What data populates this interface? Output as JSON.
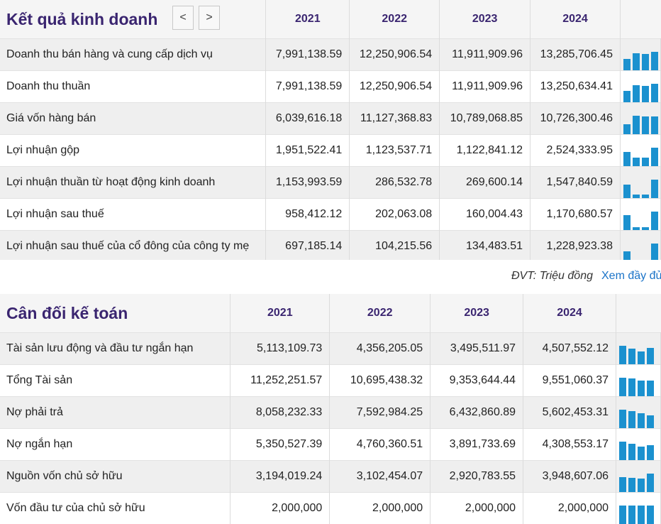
{
  "income": {
    "title": "Kết quả kinh doanh",
    "prev_label": "<",
    "next_label": ">",
    "years": [
      "2021",
      "2022",
      "2023",
      "2024"
    ],
    "rows": [
      {
        "label": "Doanh thu bán hàng và cung cấp dịch vụ",
        "values": [
          "7,991,138.59",
          "12,250,906.54",
          "11,911,909.96",
          "13,285,706.45"
        ],
        "spark": [
          7991138.59,
          12250906.54,
          11911909.96,
          13285706.45
        ]
      },
      {
        "label": "Doanh thu thuần",
        "values": [
          "7,991,138.59",
          "12,250,906.54",
          "11,911,909.96",
          "13,250,634.41"
        ],
        "spark": [
          7991138.59,
          12250906.54,
          11911909.96,
          13250634.41
        ]
      },
      {
        "label": "Giá vốn hàng bán",
        "values": [
          "6,039,616.18",
          "11,127,368.83",
          "10,789,068.85",
          "10,726,300.46"
        ],
        "spark": [
          6039616.18,
          11127368.83,
          10789068.85,
          10726300.46
        ]
      },
      {
        "label": "Lợi nhuận gộp",
        "values": [
          "1,951,522.41",
          "1,123,537.71",
          "1,122,841.12",
          "2,524,333.95"
        ],
        "spark": [
          1951522.41,
          1123537.71,
          1122841.12,
          2524333.95
        ]
      },
      {
        "label": "Lợi nhuận thuần từ hoạt động kinh doanh",
        "values": [
          "1,153,993.59",
          "286,532.78",
          "269,600.14",
          "1,547,840.59"
        ],
        "spark": [
          1153993.59,
          286532.78,
          269600.14,
          1547840.59
        ]
      },
      {
        "label": "Lợi nhuận sau thuế",
        "values": [
          "958,412.12",
          "202,063.08",
          "160,004.43",
          "1,170,680.57"
        ],
        "spark": [
          958412.12,
          202063.08,
          160004.43,
          1170680.57
        ]
      },
      {
        "label": "Lợi nhuận sau thuế của cổ đông của công ty mẹ",
        "values": [
          "697,185.14",
          "104,215.56",
          "134,483.51",
          "1,228,923.38"
        ],
        "spark": [
          697185.14,
          104215.56,
          134483.51,
          1228923.38
        ]
      }
    ],
    "unit": "ĐVT: Triệu đồng",
    "more_link": "Xem đầy đủ"
  },
  "balance": {
    "title": "Cân đối kế toán",
    "years": [
      "2021",
      "2022",
      "2023",
      "2024"
    ],
    "rows": [
      {
        "label": "Tài sản lưu động và đầu tư ngắn hạn",
        "values": [
          "5,113,109.73",
          "4,356,205.05",
          "3,495,511.97",
          "4,507,552.12"
        ],
        "spark": [
          5113109.73,
          4356205.05,
          3495511.97,
          4507552.12
        ]
      },
      {
        "label": "Tổng Tài sản",
        "values": [
          "11,252,251.57",
          "10,695,438.32",
          "9,353,644.44",
          "9,551,060.37"
        ],
        "spark": [
          11252251.57,
          10695438.32,
          9353644.44,
          9551060.37
        ]
      },
      {
        "label": "Nợ phải trả",
        "values": [
          "8,058,232.33",
          "7,592,984.25",
          "6,432,860.89",
          "5,602,453.31"
        ],
        "spark": [
          8058232.33,
          7592984.25,
          6432860.89,
          5602453.31
        ]
      },
      {
        "label": "Nợ ngắn hạn",
        "values": [
          "5,350,527.39",
          "4,760,360.51",
          "3,891,733.69",
          "4,308,553.17"
        ],
        "spark": [
          5350527.39,
          4760360.51,
          3891733.69,
          4308553.17
        ]
      },
      {
        "label": "Nguồn vốn chủ sở hữu",
        "values": [
          "3,194,019.24",
          "3,102,454.07",
          "2,920,783.55",
          "3,948,607.06"
        ],
        "spark": [
          3194019.24,
          3102454.07,
          2920783.55,
          3948607.06
        ]
      },
      {
        "label": "Vốn đầu tư của chủ sở hữu",
        "values": [
          "2,000,000",
          "2,000,000",
          "2,000,000",
          "2,000,000"
        ],
        "spark": [
          2000000,
          2000000,
          2000000,
          2000000
        ]
      }
    ]
  },
  "colors": {
    "accent_title": "#3a2570",
    "spark_bar": "#1b91cf",
    "link": "#1a73c8"
  }
}
